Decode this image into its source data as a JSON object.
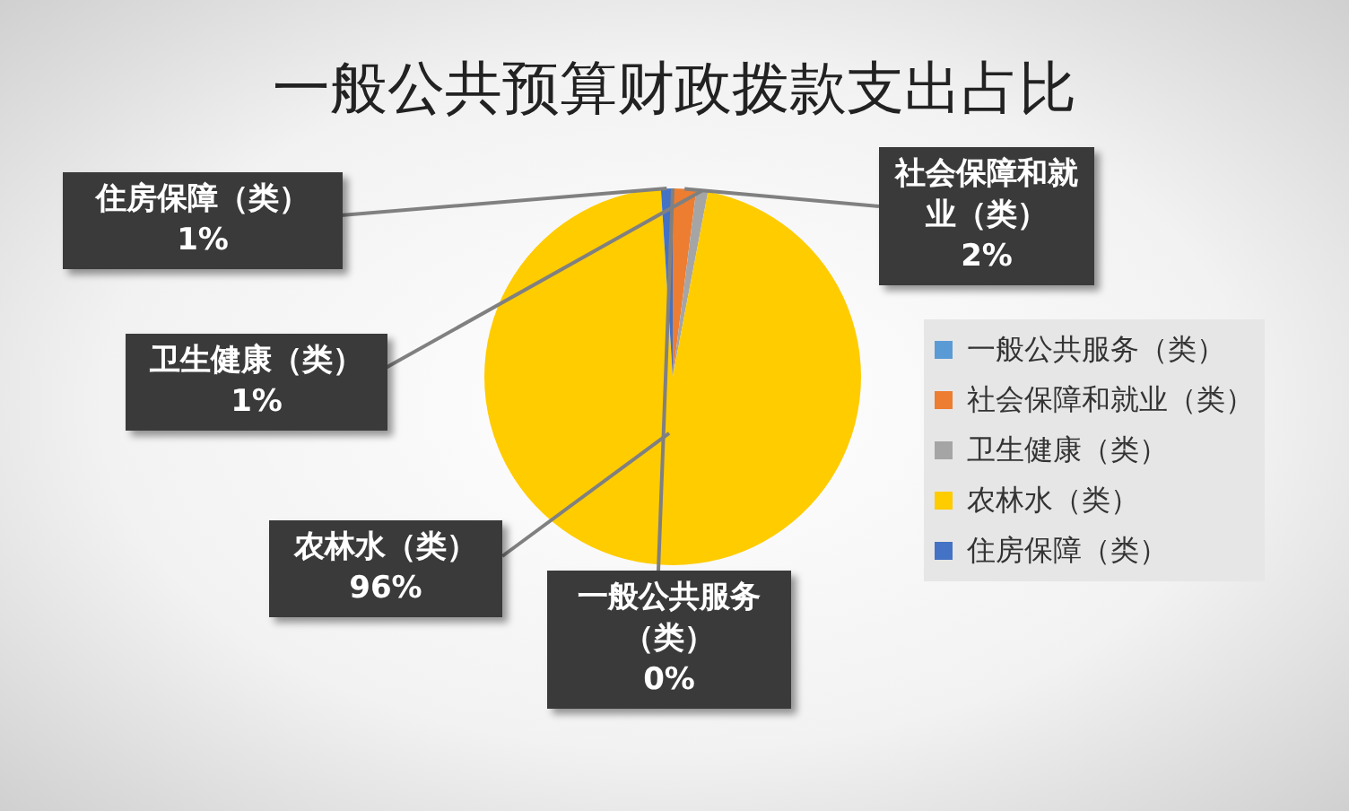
{
  "chart_data": {
    "type": "pie",
    "title": "一般公共预算财政拨款支出占比",
    "categories": [
      "一般公共服务（类）",
      "社会保障和就业（类）",
      "卫生健康（类）",
      "农林水（类）",
      "住房保障（类）"
    ],
    "values": [
      0,
      2,
      1,
      96,
      1
    ],
    "value_labels": [
      "0%",
      "2%",
      "1%",
      "96%",
      "1%"
    ],
    "colors": [
      "#5b9bd5",
      "#ed7d31",
      "#a5a5a5",
      "#ffcc00",
      "#4472c4"
    ],
    "legend": "right"
  }
}
